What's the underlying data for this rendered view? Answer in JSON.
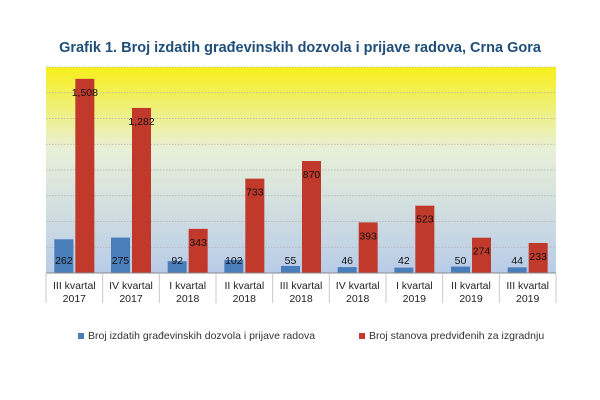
{
  "page": {
    "title": "Grafik 1. Broj izdatih građevinskih dozvola i prijave radova, Crna Gora"
  },
  "chart_data": {
    "type": "bar",
    "title": "Grafik 1. Broj izdatih građevinskih dozvola i prijave radova, Crna Gora",
    "categories": [
      [
        "III kvartal",
        "2017"
      ],
      [
        "IV kvartal",
        "2017"
      ],
      [
        "I kvartal",
        "2018"
      ],
      [
        "II kvartal",
        "2018"
      ],
      [
        "III kvartal",
        "2018"
      ],
      [
        "IV kvartal",
        "2018"
      ],
      [
        "I kvartal",
        "2019"
      ],
      [
        "II kvartal",
        "2019"
      ],
      [
        "III kvartal",
        "2019"
      ]
    ],
    "series": [
      {
        "name": "Broj izdatih građevinskih dozvola i prijave radova",
        "color": "#4a7ebb",
        "values": [
          262,
          275,
          92,
          102,
          55,
          46,
          42,
          50,
          44
        ],
        "labels": [
          "262",
          "275",
          "92",
          "102",
          "55",
          "46",
          "42",
          "50",
          "44"
        ]
      },
      {
        "name": "Broj stanova predviđenih za izgradnju",
        "color": "#c0392b",
        "values": [
          1508,
          1282,
          343,
          733,
          870,
          393,
          523,
          274,
          233
        ],
        "labels": [
          "1,508",
          "1,282",
          "343",
          "733",
          "870",
          "393",
          "523",
          "274",
          "233"
        ]
      }
    ],
    "ylim": [
      0,
      1600
    ],
    "gridlines": [
      200,
      400,
      600,
      800,
      1000,
      1200,
      1400,
      1600
    ],
    "legend_position": "bottom",
    "background_colors": [
      "#f7ef1a",
      "#e8f0d8",
      "#b9cce8"
    ]
  }
}
